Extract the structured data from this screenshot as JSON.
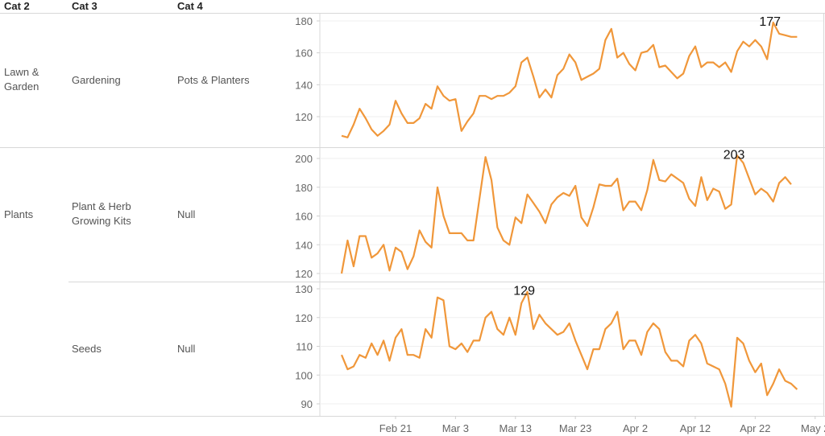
{
  "headers": [
    "Cat 2",
    "Cat 3",
    "Cat 4"
  ],
  "rows": [
    {
      "cat2": "Lawn & Garden",
      "cat3": "Gardening",
      "cat4": "Pots & Planters"
    },
    {
      "cat2": "Plants",
      "cat3": "Plant & Herb Growing Kits",
      "cat4": "Null"
    },
    {
      "cat2": "",
      "cat3": "Seeds",
      "cat4": "Null"
    }
  ],
  "chart_data": {
    "type": "line",
    "line_color": "#F0973A",
    "x_axis": {
      "start": "Feb 12",
      "ticks": [
        "Feb 21",
        "Mar 3",
        "Mar 13",
        "Mar 23",
        "Apr 2",
        "Apr 12",
        "Apr 22",
        "May 2"
      ]
    },
    "panels": [
      {
        "ylim": [
          103,
          183
        ],
        "yticks": [
          "120",
          "140",
          "160",
          "180"
        ],
        "max_label": "177",
        "values": [
          108,
          107,
          115,
          125,
          119,
          112,
          108,
          111,
          115,
          130,
          122,
          116,
          116,
          119,
          128,
          125,
          139,
          133,
          130,
          131,
          111,
          117,
          122,
          133,
          133,
          131,
          133,
          133,
          135,
          139,
          154,
          157,
          145,
          132,
          137,
          132,
          146,
          150,
          159,
          154,
          143,
          145,
          147,
          150,
          168,
          175,
          157,
          160,
          153,
          149,
          160,
          161,
          165,
          151,
          152,
          148,
          144,
          147,
          158,
          164,
          151,
          154,
          154,
          151,
          154,
          148,
          161,
          167,
          164,
          168,
          164,
          156,
          179,
          172,
          171,
          170,
          170
        ]
      },
      {
        "ylim": [
          117,
          208
        ],
        "yticks": [
          "120",
          "140",
          "160",
          "180",
          "200"
        ],
        "max_label": "203",
        "values": [
          120,
          143,
          125,
          146,
          146,
          131,
          134,
          140,
          122,
          138,
          135,
          123,
          132,
          150,
          142,
          138,
          180,
          160,
          148,
          148,
          148,
          143,
          143,
          172,
          201,
          185,
          152,
          143,
          140,
          159,
          155,
          175,
          169,
          163,
          155,
          168,
          173,
          176,
          174,
          181,
          159,
          153,
          166,
          182,
          181,
          181,
          186,
          164,
          170,
          170,
          164,
          178,
          199,
          185,
          184,
          189,
          186,
          183,
          172,
          167,
          187,
          171,
          179,
          177,
          165,
          168,
          202,
          197,
          186,
          175,
          179,
          176,
          170,
          183,
          187,
          182
        ]
      },
      {
        "ylim": [
          87,
          131
        ],
        "yticks": [
          "90",
          "100",
          "110",
          "120",
          "130"
        ],
        "max_label": "129",
        "values": [
          107,
          102,
          103,
          107,
          106,
          111,
          107,
          112,
          105,
          113,
          116,
          107,
          107,
          106,
          116,
          113,
          127,
          126,
          110,
          109,
          111,
          108,
          112,
          112,
          120,
          122,
          116,
          114,
          120,
          114,
          125,
          129,
          116,
          121,
          118,
          116,
          114,
          115,
          118,
          112,
          107,
          102,
          109,
          109,
          116,
          118,
          122,
          109,
          112,
          112,
          107,
          115,
          118,
          116,
          108,
          105,
          105,
          103,
          112,
          114,
          111,
          104,
          103,
          102,
          97,
          89,
          113,
          111,
          105,
          101,
          104,
          93,
          97,
          102,
          98,
          97,
          95
        ]
      }
    ]
  }
}
